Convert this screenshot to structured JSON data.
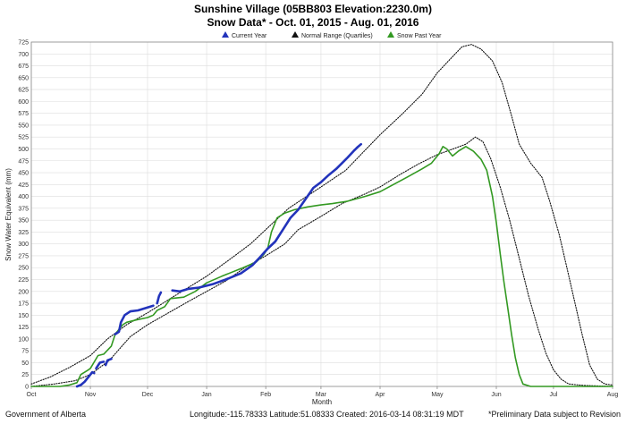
{
  "footer": {
    "left": "Government of Alberta",
    "center": "Longitude:-115.78333 Latitude:51.08333   Created: 2016-03-14 08:31:19 MDT",
    "right": "*Preliminary Data subject to Revision"
  },
  "chart_data": {
    "type": "line",
    "title": "Sunshine Village (05BB803 Elevation:2230.0m)",
    "subtitle": "Snow Data* - Oct. 01, 2015 - Aug. 01, 2016",
    "xlabel": "Month",
    "ylabel": "Snow Water Equivalent (mm)",
    "ylim": [
      0,
      725
    ],
    "xlim_days": [
      0,
      305
    ],
    "y_ticks": [
      0,
      25,
      50,
      75,
      100,
      125,
      150,
      175,
      200,
      225,
      250,
      275,
      300,
      325,
      350,
      375,
      400,
      425,
      450,
      475,
      500,
      525,
      550,
      575,
      600,
      625,
      650,
      675,
      700,
      725
    ],
    "x_ticks": [
      {
        "label": "Oct",
        "day": 0
      },
      {
        "label": "Nov",
        "day": 31
      },
      {
        "label": "Dec",
        "day": 61
      },
      {
        "label": "Jan",
        "day": 92
      },
      {
        "label": "Feb",
        "day": 123
      },
      {
        "label": "Mar",
        "day": 152
      },
      {
        "label": "Apr",
        "day": 183
      },
      {
        "label": "May",
        "day": 213
      },
      {
        "label": "Jun",
        "day": 244
      },
      {
        "label": "Jul",
        "day": 274
      },
      {
        "label": "Aug",
        "day": 305
      }
    ],
    "grid": true,
    "legend_position": "top-center",
    "series": [
      {
        "name": "Current Year",
        "color": "#2233bb",
        "style": "solid",
        "segments": [
          [
            [
              24,
              0
            ],
            [
              26,
              3
            ],
            [
              28,
              10
            ],
            [
              30,
              20
            ],
            [
              32,
              30
            ],
            [
              33,
              28
            ]
          ],
          [
            [
              34,
              38
            ],
            [
              36,
              50
            ],
            [
              38,
              52
            ]
          ],
          [
            [
              39,
              45
            ],
            [
              40,
              55
            ],
            [
              42,
              58
            ]
          ],
          [
            [
              44,
              110
            ],
            [
              46,
              115
            ],
            [
              47,
              135
            ],
            [
              49,
              150
            ],
            [
              52,
              158
            ],
            [
              56,
              160
            ],
            [
              60,
              165
            ],
            [
              64,
              170
            ]
          ],
          [
            [
              66,
              175
            ],
            [
              67,
              190
            ],
            [
              68,
              198
            ]
          ],
          [
            [
              74,
              202
            ],
            [
              78,
              200
            ],
            [
              82,
              205
            ],
            [
              88,
              208
            ],
            [
              95,
              215
            ],
            [
              102,
              225
            ],
            [
              110,
              238
            ],
            [
              116,
              255
            ],
            [
              120,
              272
            ],
            [
              124,
              290
            ],
            [
              128,
              305
            ],
            [
              132,
              330
            ],
            [
              136,
              355
            ],
            [
              140,
              372
            ],
            [
              144,
              395
            ],
            [
              148,
              418
            ],
            [
              152,
              430
            ],
            [
              156,
              445
            ],
            [
              160,
              458
            ],
            [
              163,
              470
            ],
            [
              166,
              482
            ],
            [
              169,
              495
            ],
            [
              171,
              503
            ],
            [
              173,
              510
            ]
          ]
        ]
      },
      {
        "name": "Normal Range (Quartiles)",
        "color": "#111111",
        "style": "dotted",
        "segments": [
          [
            [
              0,
              5
            ],
            [
              10,
              20
            ],
            [
              20,
              40
            ],
            [
              31,
              65
            ],
            [
              40,
              100
            ],
            [
              50,
              130
            ],
            [
              61,
              155
            ],
            [
              75,
              190
            ],
            [
              92,
              232
            ],
            [
              105,
              270
            ],
            [
              115,
              300
            ],
            [
              123,
              330
            ],
            [
              135,
              375
            ],
            [
              152,
              420
            ],
            [
              165,
              455
            ],
            [
              183,
              530
            ],
            [
              195,
              575
            ],
            [
              205,
              615
            ],
            [
              213,
              660
            ],
            [
              220,
              690
            ],
            [
              226,
              715
            ],
            [
              231,
              720
            ],
            [
              236,
              710
            ],
            [
              242,
              685
            ],
            [
              247,
              640
            ],
            [
              252,
              570
            ],
            [
              256,
              510
            ],
            [
              262,
              470
            ],
            [
              268,
              440
            ],
            [
              272,
              390
            ],
            [
              277,
              320
            ],
            [
              281,
              250
            ],
            [
              285,
              180
            ],
            [
              289,
              110
            ],
            [
              293,
              45
            ],
            [
              297,
              15
            ],
            [
              301,
              5
            ],
            [
              305,
              3
            ]
          ],
          [
            [
              0,
              0
            ],
            [
              12,
              5
            ],
            [
              23,
              12
            ],
            [
              31,
              25
            ],
            [
              41,
              55
            ],
            [
              52,
              105
            ],
            [
              61,
              130
            ],
            [
              72,
              155
            ],
            [
              82,
              178
            ],
            [
              92,
              200
            ],
            [
              102,
              222
            ],
            [
              112,
              250
            ],
            [
              123,
              275
            ],
            [
              133,
              300
            ],
            [
              140,
              330
            ],
            [
              152,
              358
            ],
            [
              163,
              385
            ],
            [
              175,
              405
            ],
            [
              183,
              420
            ],
            [
              193,
              445
            ],
            [
              203,
              468
            ],
            [
              213,
              488
            ],
            [
              220,
              498
            ],
            [
              228,
              510
            ],
            [
              233,
              525
            ],
            [
              237,
              515
            ],
            [
              241,
              480
            ],
            [
              246,
              420
            ],
            [
              251,
              350
            ],
            [
              256,
              270
            ],
            [
              261,
              190
            ],
            [
              266,
              120
            ],
            [
              270,
              70
            ],
            [
              274,
              35
            ],
            [
              278,
              15
            ],
            [
              282,
              5
            ],
            [
              290,
              2
            ],
            [
              305,
              0
            ]
          ]
        ]
      },
      {
        "name": "Snow Past Year",
        "color": "#339922",
        "style": "solid",
        "segments": [
          [
            [
              0,
              0
            ],
            [
              15,
              0
            ],
            [
              20,
              3
            ],
            [
              24,
              8
            ],
            [
              26,
              25
            ],
            [
              28,
              30
            ],
            [
              30,
              35
            ],
            [
              31,
              38
            ],
            [
              35,
              65
            ],
            [
              38,
              68
            ],
            [
              42,
              85
            ],
            [
              44,
              110
            ],
            [
              46,
              120
            ],
            [
              48,
              130
            ],
            [
              50,
              135
            ],
            [
              55,
              140
            ],
            [
              61,
              145
            ],
            [
              64,
              150
            ],
            [
              66,
              160
            ],
            [
              70,
              168
            ],
            [
              73,
              185
            ],
            [
              80,
              188
            ],
            [
              86,
              200
            ],
            [
              92,
              218
            ],
            [
              100,
              232
            ],
            [
              110,
              248
            ],
            [
              118,
              262
            ],
            [
              122,
              278
            ],
            [
              124,
              290
            ],
            [
              126,
              325
            ],
            [
              129,
              355
            ],
            [
              133,
              365
            ],
            [
              138,
              372
            ],
            [
              145,
              378
            ],
            [
              152,
              382
            ],
            [
              158,
              385
            ],
            [
              166,
              390
            ],
            [
              175,
              400
            ],
            [
              183,
              410
            ],
            [
              190,
              425
            ],
            [
              197,
              440
            ],
            [
              205,
              458
            ],
            [
              210,
              470
            ],
            [
              214,
              490
            ],
            [
              216,
              505
            ],
            [
              218,
              500
            ],
            [
              221,
              485
            ],
            [
              224,
              495
            ],
            [
              228,
              505
            ],
            [
              232,
              495
            ],
            [
              236,
              478
            ],
            [
              239,
              455
            ],
            [
              242,
              400
            ],
            [
              244,
              345
            ],
            [
              246,
              280
            ],
            [
              248,
              220
            ],
            [
              250,
              165
            ],
            [
              252,
              110
            ],
            [
              254,
              60
            ],
            [
              256,
              25
            ],
            [
              258,
              5
            ],
            [
              262,
              0
            ],
            [
              305,
              0
            ]
          ]
        ]
      }
    ]
  }
}
